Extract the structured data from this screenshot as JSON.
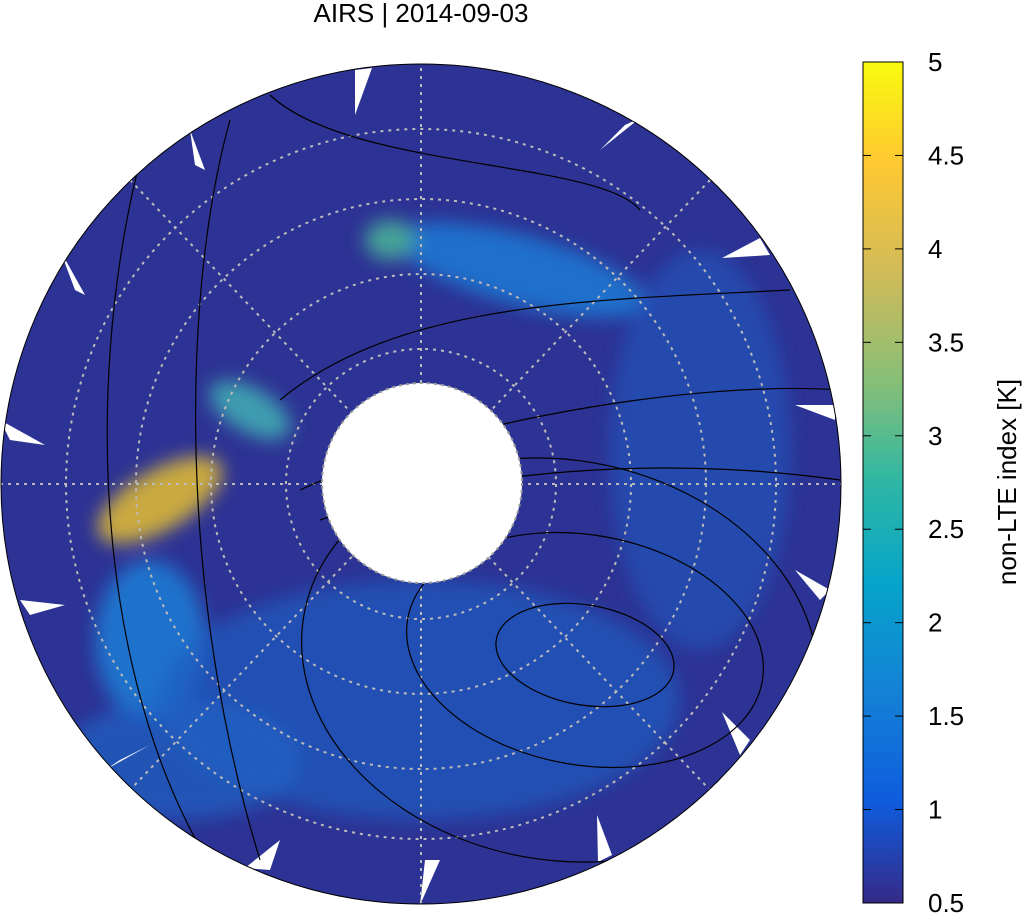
{
  "title": "AIRS | 2014-09-03",
  "colorbar": {
    "label": "non-LTE index [K]",
    "lim": [
      0.5,
      5
    ],
    "ticks": [
      0.5,
      1,
      1.5,
      2,
      2.5,
      3,
      3.5,
      4,
      4.5,
      5
    ]
  }
}
